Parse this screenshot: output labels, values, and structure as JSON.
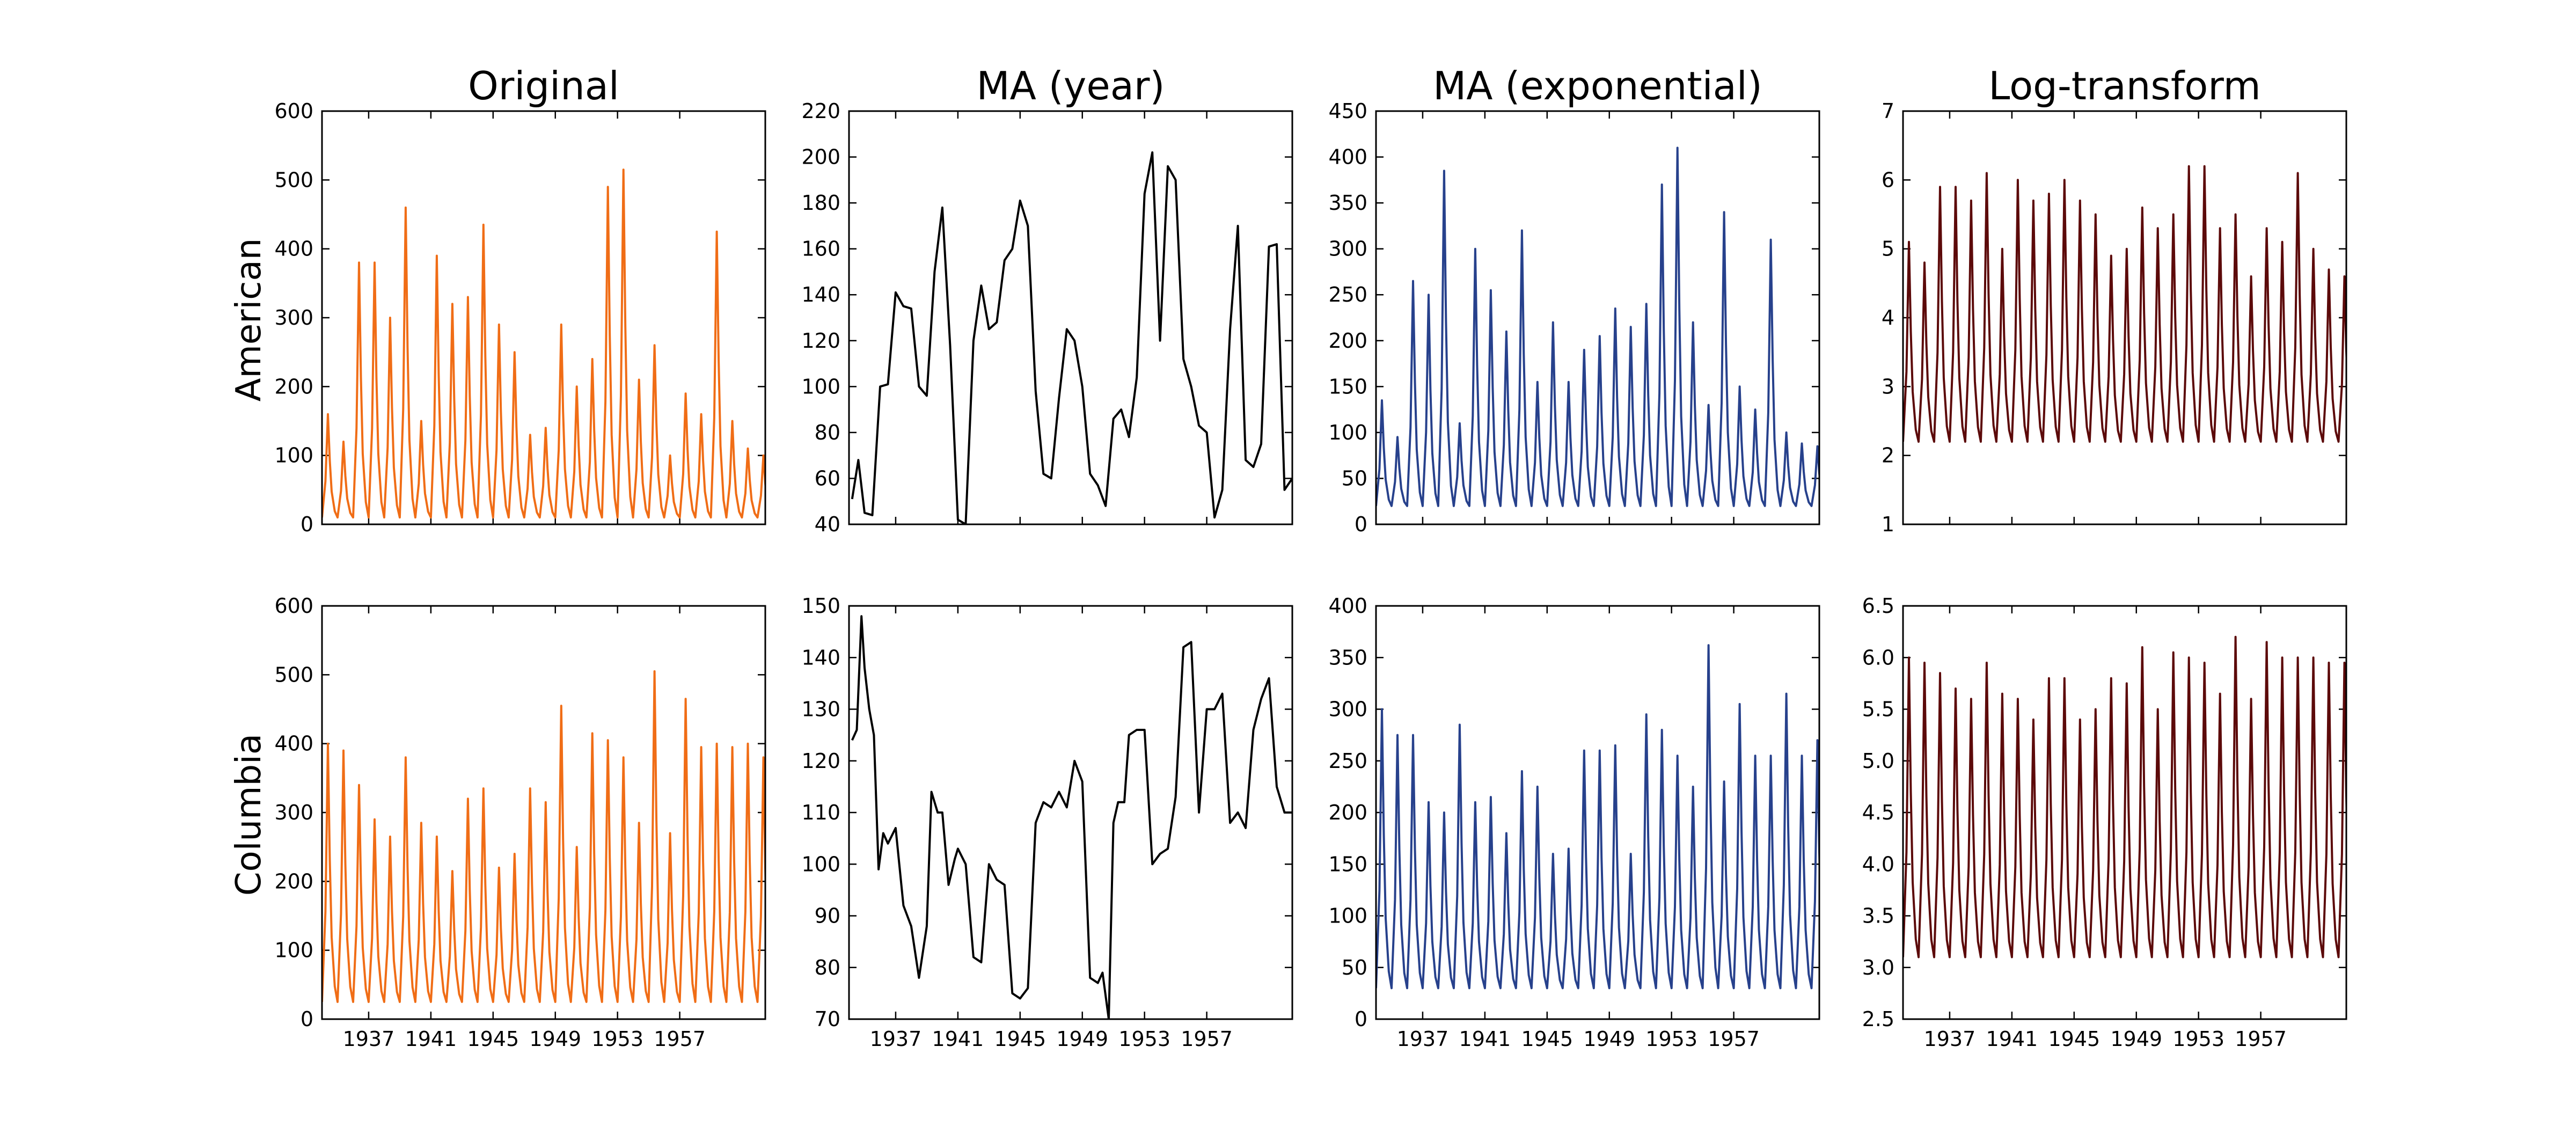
{
  "figure": {
    "column_titles": [
      "Original",
      "MA (year)",
      "MA (exponential)",
      "Log-transform"
    ],
    "row_labels": [
      "American",
      "Columbia"
    ]
  },
  "chart_data": [
    {
      "type": "line",
      "title": "Original",
      "row": "American",
      "color": "#f06d16",
      "ylim": [
        0,
        600
      ],
      "yticks": [
        0,
        100,
        200,
        300,
        400,
        500,
        600
      ],
      "xlim": [
        1934,
        1962.5
      ],
      "xticks": [
        1937,
        1941,
        1945,
        1949,
        1953,
        1957
      ],
      "shape": "seasonal",
      "base": 10,
      "x": [
        1934.0,
        1935.0,
        1936.0,
        1937.0,
        1938.0,
        1939.0,
        1940.0,
        1941.0,
        1942.0,
        1943.0,
        1944.0,
        1945.0,
        1946.0,
        1947.0,
        1948.0,
        1949.0,
        1950.0,
        1951.0,
        1952.0,
        1953.0,
        1954.0,
        1955.0,
        1956.0,
        1957.0,
        1958.0,
        1959.0,
        1960.0,
        1961.0,
        1962.0
      ],
      "values": [
        160,
        120,
        380,
        380,
        300,
        460,
        150,
        390,
        320,
        330,
        435,
        290,
        250,
        130,
        140,
        290,
        200,
        240,
        490,
        515,
        210,
        260,
        100,
        190,
        160,
        425,
        150,
        110,
        100
      ]
    },
    {
      "type": "line",
      "title": "MA (year)",
      "row": "American",
      "color": "#000000",
      "ylim": [
        40,
        220
      ],
      "yticks": [
        40,
        60,
        80,
        100,
        120,
        140,
        160,
        180,
        200,
        220
      ],
      "xlim": [
        1934,
        1962.5
      ],
      "xticks": [
        1937,
        1941,
        1945,
        1949,
        1953,
        1957
      ],
      "shape": "smooth",
      "x": [
        1934.2,
        1934.6,
        1935.0,
        1935.5,
        1936.0,
        1936.5,
        1937.0,
        1937.5,
        1938.0,
        1938.5,
        1939.0,
        1939.5,
        1940.0,
        1940.5,
        1941.0,
        1941.5,
        1942.0,
        1942.5,
        1943.0,
        1943.5,
        1944.0,
        1944.5,
        1945.0,
        1945.5,
        1946.0,
        1946.5,
        1947.0,
        1947.5,
        1948.0,
        1948.5,
        1949.0,
        1949.5,
        1950.0,
        1950.5,
        1951.0,
        1951.5,
        1952.0,
        1952.5,
        1953.0,
        1953.5,
        1954.0,
        1954.5,
        1955.0,
        1955.5,
        1956.0,
        1956.5,
        1957.0,
        1957.5,
        1958.0,
        1958.5,
        1959.0,
        1959.5,
        1960.0,
        1960.5,
        1961.0,
        1961.5,
        1962.0,
        1962.5
      ],
      "values": [
        51,
        68,
        45,
        44,
        100,
        101,
        141,
        135,
        134,
        100,
        96,
        150,
        178,
        118,
        42,
        40,
        120,
        144,
        125,
        128,
        155,
        160,
        181,
        170,
        98,
        62,
        60,
        95,
        125,
        120,
        100,
        62,
        57,
        48,
        86,
        90,
        78,
        104,
        184,
        202,
        120,
        196,
        190,
        112,
        100,
        83,
        80,
        43,
        55,
        125,
        170,
        68,
        65,
        75,
        161,
        162,
        55,
        60
      ]
    },
    {
      "type": "line",
      "title": "MA (exponential)",
      "row": "American",
      "color": "#27418c",
      "ylim": [
        0,
        450
      ],
      "yticks": [
        0,
        50,
        100,
        150,
        200,
        250,
        300,
        350,
        400,
        450
      ],
      "xlim": [
        1934,
        1962.5
      ],
      "xticks": [
        1937,
        1941,
        1945,
        1949,
        1953,
        1957
      ],
      "shape": "seasonal",
      "base": 20,
      "x": [
        1934.0,
        1935.0,
        1936.0,
        1937.0,
        1938.0,
        1939.0,
        1940.0,
        1941.0,
        1942.0,
        1943.0,
        1944.0,
        1945.0,
        1946.0,
        1947.0,
        1948.0,
        1949.0,
        1950.0,
        1951.0,
        1952.0,
        1953.0,
        1954.0,
        1955.0,
        1956.0,
        1957.0,
        1958.0,
        1959.0,
        1960.0,
        1961.0,
        1962.0
      ],
      "values": [
        135,
        95,
        265,
        250,
        385,
        110,
        300,
        255,
        210,
        320,
        155,
        220,
        155,
        190,
        205,
        235,
        215,
        240,
        370,
        410,
        220,
        130,
        340,
        150,
        125,
        310,
        100,
        88,
        85
      ]
    },
    {
      "type": "line",
      "title": "Log-transform",
      "row": "American",
      "color": "#5c0a0a",
      "ylim": [
        1,
        7
      ],
      "yticks": [
        1,
        2,
        3,
        4,
        5,
        6,
        7
      ],
      "xlim": [
        1934,
        1962.5
      ],
      "xticks": [
        1937,
        1941,
        1945,
        1949,
        1953,
        1957
      ],
      "shape": "seasonal",
      "base": 2.2,
      "x": [
        1934.0,
        1935.0,
        1936.0,
        1937.0,
        1938.0,
        1939.0,
        1940.0,
        1941.0,
        1942.0,
        1943.0,
        1944.0,
        1945.0,
        1946.0,
        1947.0,
        1948.0,
        1949.0,
        1950.0,
        1951.0,
        1952.0,
        1953.0,
        1954.0,
        1955.0,
        1956.0,
        1957.0,
        1958.0,
        1959.0,
        1960.0,
        1961.0,
        1962.0
      ],
      "values": [
        5.1,
        4.8,
        5.9,
        5.9,
        5.7,
        6.1,
        5.0,
        6.0,
        5.7,
        5.8,
        6.0,
        5.7,
        5.5,
        4.9,
        5.0,
        5.6,
        5.3,
        5.5,
        6.2,
        6.2,
        5.3,
        5.5,
        4.6,
        5.3,
        5.1,
        6.1,
        5.0,
        4.7,
        4.6
      ]
    },
    {
      "type": "line",
      "title": "Original",
      "row": "Columbia",
      "color": "#f06d16",
      "ylim": [
        0,
        600
      ],
      "yticks": [
        0,
        100,
        200,
        300,
        400,
        500,
        600
      ],
      "xlim": [
        1934,
        1962.5
      ],
      "xticks": [
        1937,
        1941,
        1945,
        1949,
        1953,
        1957
      ],
      "shape": "seasonal",
      "base": 25,
      "x": [
        1934.0,
        1935.0,
        1936.0,
        1937.0,
        1938.0,
        1939.0,
        1940.0,
        1941.0,
        1942.0,
        1943.0,
        1944.0,
        1945.0,
        1946.0,
        1947.0,
        1948.0,
        1949.0,
        1950.0,
        1951.0,
        1952.0,
        1953.0,
        1954.0,
        1955.0,
        1956.0,
        1957.0,
        1958.0,
        1959.0,
        1960.0,
        1961.0,
        1962.0
      ],
      "values": [
        400,
        390,
        340,
        290,
        265,
        380,
        285,
        265,
        215,
        320,
        335,
        220,
        240,
        335,
        315,
        455,
        250,
        415,
        405,
        380,
        285,
        505,
        270,
        465,
        395,
        400,
        395,
        400,
        380
      ]
    },
    {
      "type": "line",
      "title": "MA (year)",
      "row": "Columbia",
      "color": "#000000",
      "ylim": [
        70,
        150
      ],
      "yticks": [
        70,
        80,
        90,
        100,
        110,
        120,
        130,
        140,
        150
      ],
      "xlim": [
        1934,
        1962.5
      ],
      "xticks": [
        1937,
        1941,
        1945,
        1949,
        1953,
        1957
      ],
      "shape": "smooth",
      "x": [
        1934.2,
        1934.5,
        1934.8,
        1935.0,
        1935.3,
        1935.6,
        1935.9,
        1936.2,
        1936.5,
        1937.0,
        1937.5,
        1938.0,
        1938.5,
        1939.0,
        1939.3,
        1939.7,
        1940.0,
        1940.4,
        1940.8,
        1941.0,
        1941.5,
        1942.0,
        1942.5,
        1943.0,
        1943.5,
        1944.0,
        1944.5,
        1945.0,
        1945.5,
        1946.0,
        1946.5,
        1947.0,
        1947.5,
        1948.0,
        1948.5,
        1949.0,
        1949.5,
        1950.0,
        1950.3,
        1950.7,
        1951.0,
        1951.3,
        1951.7,
        1952.0,
        1952.5,
        1953.0,
        1953.5,
        1954.0,
        1954.5,
        1955.0,
        1955.5,
        1956.0,
        1956.5,
        1957.0,
        1957.5,
        1958.0,
        1958.5,
        1959.0,
        1959.5,
        1960.0,
        1960.5,
        1961.0,
        1961.5,
        1962.0,
        1962.5
      ],
      "values": [
        124,
        126,
        148,
        138,
        130,
        125,
        99,
        106,
        104,
        107,
        92,
        88,
        78,
        88,
        114,
        110,
        110,
        96,
        101,
        103,
        100,
        82,
        81,
        100,
        97,
        96,
        75,
        74,
        76,
        108,
        112,
        111,
        114,
        111,
        120,
        116,
        78,
        77,
        79,
        70,
        108,
        112,
        112,
        125,
        126,
        126,
        100,
        102,
        103,
        113,
        142,
        143,
        110,
        130,
        130,
        133,
        108,
        110,
        107,
        126,
        132,
        136,
        115,
        110,
        110
      ]
    },
    {
      "type": "line",
      "title": "MA (exponential)",
      "row": "Columbia",
      "color": "#27418c",
      "ylim": [
        0,
        400
      ],
      "yticks": [
        0,
        50,
        100,
        150,
        200,
        250,
        300,
        350,
        400
      ],
      "xlim": [
        1934,
        1962.5
      ],
      "xticks": [
        1937,
        1941,
        1945,
        1949,
        1953,
        1957
      ],
      "shape": "seasonal",
      "base": 30,
      "x": [
        1934.0,
        1935.0,
        1936.0,
        1937.0,
        1938.0,
        1939.0,
        1940.0,
        1941.0,
        1942.0,
        1943.0,
        1944.0,
        1945.0,
        1946.0,
        1947.0,
        1948.0,
        1949.0,
        1950.0,
        1951.0,
        1952.0,
        1953.0,
        1954.0,
        1955.0,
        1956.0,
        1957.0,
        1958.0,
        1959.0,
        1960.0,
        1961.0,
        1962.0
      ],
      "values": [
        300,
        275,
        275,
        210,
        200,
        285,
        210,
        215,
        180,
        240,
        225,
        160,
        165,
        260,
        260,
        265,
        160,
        295,
        280,
        255,
        225,
        362,
        230,
        305,
        255,
        255,
        315,
        255,
        270
      ]
    },
    {
      "type": "line",
      "title": "Log-transform",
      "row": "Columbia",
      "color": "#5c0a0a",
      "ylim": [
        2.5,
        6.5
      ],
      "yticks": [
        2.5,
        3.0,
        3.5,
        4.0,
        4.5,
        5.0,
        5.5,
        6.0,
        6.5
      ],
      "xlim": [
        1934,
        1962.5
      ],
      "xticks": [
        1937,
        1941,
        1945,
        1949,
        1953,
        1957
      ],
      "shape": "seasonal",
      "base": 3.1,
      "x": [
        1934.0,
        1935.0,
        1936.0,
        1937.0,
        1938.0,
        1939.0,
        1940.0,
        1941.0,
        1942.0,
        1943.0,
        1944.0,
        1945.0,
        1946.0,
        1947.0,
        1948.0,
        1949.0,
        1950.0,
        1951.0,
        1952.0,
        1953.0,
        1954.0,
        1955.0,
        1956.0,
        1957.0,
        1958.0,
        1959.0,
        1960.0,
        1961.0,
        1962.0
      ],
      "values": [
        6.0,
        5.95,
        5.85,
        5.7,
        5.6,
        5.95,
        5.65,
        5.6,
        5.4,
        5.8,
        5.8,
        5.4,
        5.5,
        5.8,
        5.75,
        6.1,
        5.5,
        6.05,
        6.0,
        5.95,
        5.65,
        6.2,
        5.6,
        6.15,
        6.0,
        6.0,
        6.0,
        5.95,
        5.95
      ]
    }
  ]
}
